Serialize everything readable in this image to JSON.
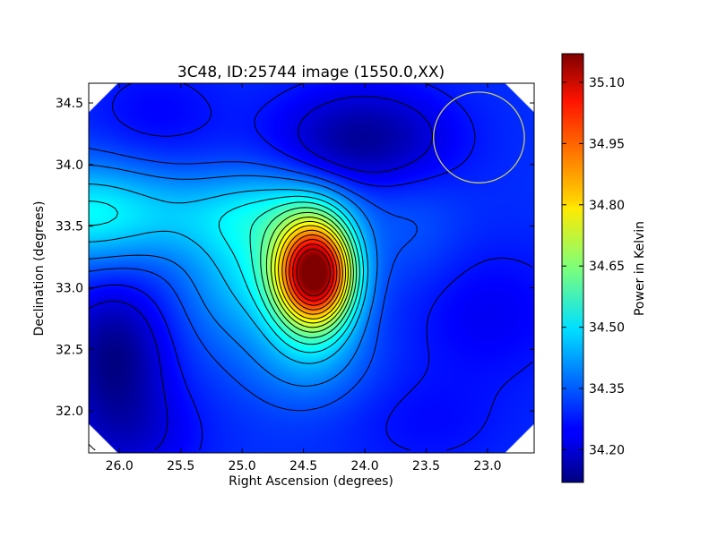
{
  "chart_data": {
    "type": "heatmap",
    "title": "3C48, ID:25744 image (1550.0,XX)",
    "xlabel": "Right Ascension (degrees)",
    "ylabel": "Declination (degrees)",
    "colorbar_label": "Power in Kelvin",
    "xlim": [
      26.25,
      22.62
    ],
    "ylim": [
      31.66,
      34.66
    ],
    "x_ticks": [
      26.0,
      25.5,
      25.0,
      24.5,
      24.0,
      23.5,
      23.0
    ],
    "x_tick_labels": [
      "26.0",
      "25.5",
      "25.0",
      "24.5",
      "24.0",
      "23.5",
      "23.0"
    ],
    "y_ticks": [
      32.0,
      32.5,
      33.0,
      33.5,
      34.0,
      34.5
    ],
    "y_tick_labels": [
      "32.0",
      "32.5",
      "33.0",
      "33.5",
      "34.0",
      "34.5"
    ],
    "colorbar_range": [
      34.12,
      35.17
    ],
    "colorbar_ticks": [
      34.2,
      34.35,
      34.5,
      34.65,
      34.8,
      34.95,
      35.1
    ],
    "colorbar_tick_labels": [
      "34.20",
      "34.35",
      "34.50",
      "34.65",
      "34.80",
      "34.95",
      "35.10"
    ],
    "colormap": "jet",
    "contour_color": "#000000",
    "peak": {
      "ra": 24.38,
      "dec": 33.12,
      "value": 35.17
    },
    "beam_circle": {
      "ra": 23.07,
      "dec": 34.22,
      "radius_deg": 0.37,
      "color": "#c8c864"
    },
    "background_value": 34.3,
    "sources": [
      {
        "ra": 24.4,
        "dec": 33.12,
        "amp": 0.87,
        "sx": 0.22,
        "sy": 0.3
      },
      {
        "ra": 24.8,
        "dec": 33.2,
        "amp": 0.14,
        "sx": 0.32,
        "sy": 0.42
      },
      {
        "ra": 24.45,
        "dec": 32.45,
        "amp": 0.1,
        "sx": 0.35,
        "sy": 0.3
      },
      {
        "ra": 25.2,
        "dec": 33.05,
        "amp": 0.06,
        "sx": 0.3,
        "sy": 0.4
      },
      {
        "ra": 26.3,
        "dec": 33.6,
        "amp": 0.2,
        "sx": 0.5,
        "sy": 0.3
      },
      {
        "ra": 25.2,
        "dec": 33.6,
        "amp": 0.1,
        "sx": 0.55,
        "sy": 0.25
      },
      {
        "ra": 24.5,
        "dec": 33.7,
        "amp": 0.06,
        "sx": 0.4,
        "sy": 0.2
      },
      {
        "ra": 23.6,
        "dec": 33.5,
        "amp": 0.04,
        "sx": 0.3,
        "sy": 0.4
      },
      {
        "ra": 24.0,
        "dec": 34.2,
        "amp": -0.16,
        "sx": 0.5,
        "sy": 0.3
      },
      {
        "ra": 26.05,
        "dec": 32.45,
        "amp": -0.17,
        "sx": 0.3,
        "sy": 0.4
      },
      {
        "ra": 25.9,
        "dec": 31.8,
        "amp": -0.08,
        "sx": 0.4,
        "sy": 0.3
      },
      {
        "ra": 23.0,
        "dec": 32.8,
        "amp": -0.06,
        "sx": 0.5,
        "sy": 0.4
      },
      {
        "ra": 23.5,
        "dec": 31.9,
        "amp": -0.04,
        "sx": 0.5,
        "sy": 0.3
      },
      {
        "ra": 25.7,
        "dec": 34.4,
        "amp": -0.05,
        "sx": 0.4,
        "sy": 0.3
      }
    ],
    "contour_levels": [
      34.22,
      34.27,
      34.33,
      34.38,
      34.45,
      34.5,
      34.55,
      34.6,
      34.65,
      34.7,
      34.75,
      34.8,
      34.86,
      34.92,
      34.98,
      35.04,
      35.1
    ]
  }
}
